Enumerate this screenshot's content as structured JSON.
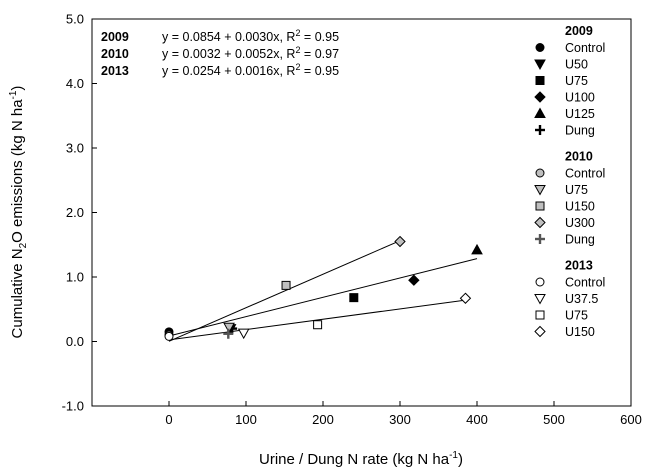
{
  "chart_data": {
    "type": "scatter",
    "xlabel": "Urine / Dung N rate (kg N ha",
    "xlabel_sup": "-1",
    "xlabel_end": ")",
    "ylabel_pre": "Cumulative N",
    "ylabel_sub": "2",
    "ylabel_mid": "O emissions (kg N ha",
    "ylabel_sup": "-1",
    "ylabel_end": ")",
    "xlim": [
      -100,
      600
    ],
    "ylim": [
      -1.0,
      5.0
    ],
    "xticks": [
      0,
      100,
      200,
      300,
      400,
      500,
      600
    ],
    "yticks": [
      -1.0,
      0.0,
      1.0,
      2.0,
      3.0,
      4.0,
      5.0
    ],
    "xtick_labels": [
      "0",
      "100",
      "200",
      "300",
      "400",
      "500",
      "600"
    ],
    "ytick_labels": [
      "-1.0",
      "0.0",
      "1.0",
      "2.0",
      "3.0",
      "4.0",
      "5.0"
    ],
    "equations": [
      {
        "year": "2009",
        "text": "y = 0.0854 + 0.0030x, R",
        "sup": "2",
        "tail": " = 0.95"
      },
      {
        "year": "2010",
        "text": "y = 0.0032 + 0.0052x, R",
        "sup": "2",
        "tail": " = 0.97"
      },
      {
        "year": "2013",
        "text": "y = 0.0254 + 0.0016x, R",
        "sup": "2",
        "tail": " = 0.95"
      }
    ],
    "regression_lines": [
      {
        "year": "2009",
        "intercept": 0.0854,
        "slope": 0.003,
        "x_range": [
          0,
          400
        ]
      },
      {
        "year": "2010",
        "intercept": 0.0032,
        "slope": 0.0052,
        "x_range": [
          0,
          300
        ]
      },
      {
        "year": "2013",
        "intercept": 0.0254,
        "slope": 0.0016,
        "x_range": [
          0,
          385
        ]
      }
    ],
    "legend_groups": [
      {
        "title": "2009",
        "series": [
          {
            "name": "Control",
            "marker": "circle",
            "fill": "#000000",
            "points": [
              [
                0,
                0.15
              ]
            ]
          },
          {
            "name": "U50",
            "marker": "triangle-down",
            "fill": "#000000",
            "points": [
              [
                80,
                0.2
              ]
            ]
          },
          {
            "name": "U75",
            "marker": "square",
            "fill": "#000000",
            "points": [
              [
                240,
                0.68
              ]
            ]
          },
          {
            "name": "U100",
            "marker": "diamond",
            "fill": "#000000",
            "points": [
              [
                318,
                0.95
              ]
            ]
          },
          {
            "name": "U125",
            "marker": "triangle-up",
            "fill": "#000000",
            "points": [
              [
                400,
                1.42
              ]
            ]
          },
          {
            "name": "Dung",
            "marker": "plus",
            "fill": "#000000",
            "points": [
              [
                82,
                0.2
              ]
            ]
          }
        ]
      },
      {
        "title": "2010",
        "series": [
          {
            "name": "Control",
            "marker": "circle",
            "fill": "#bfbfbf",
            "points": [
              [
                0,
                0.1
              ]
            ]
          },
          {
            "name": "U75",
            "marker": "triangle-down",
            "fill": "#bfbfbf",
            "points": [
              [
                78,
                0.22
              ]
            ]
          },
          {
            "name": "U150",
            "marker": "square",
            "fill": "#bfbfbf",
            "points": [
              [
                152,
                0.87
              ]
            ]
          },
          {
            "name": "U300",
            "marker": "diamond",
            "fill": "#bfbfbf",
            "points": [
              [
                300,
                1.55
              ]
            ]
          },
          {
            "name": "Dung",
            "marker": "plus",
            "fill": "#555555",
            "points": [
              [
                77,
                0.12
              ]
            ]
          }
        ]
      },
      {
        "title": "2013",
        "series": [
          {
            "name": "Control",
            "marker": "circle",
            "fill": "#ffffff",
            "points": [
              [
                0,
                0.08
              ]
            ]
          },
          {
            "name": "U37.5",
            "marker": "triangle-down",
            "fill": "#ffffff",
            "points": [
              [
                97,
                0.13
              ]
            ]
          },
          {
            "name": "U75",
            "marker": "square",
            "fill": "#ffffff",
            "points": [
              [
                193,
                0.26
              ]
            ]
          },
          {
            "name": "U150",
            "marker": "diamond",
            "fill": "#ffffff",
            "points": [
              [
                385,
                0.67
              ]
            ]
          }
        ]
      }
    ]
  }
}
